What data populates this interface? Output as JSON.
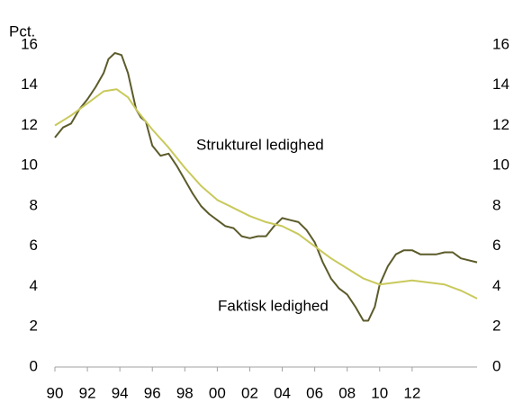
{
  "chart_data": {
    "type": "line",
    "y_label": "Pct.",
    "annotations": [
      "Strukturel ledighed",
      "Faktisk ledighed"
    ],
    "xlim": [
      1990,
      2016
    ],
    "xticks": [
      {
        "value": 1990,
        "label": "90"
      },
      {
        "value": 1992,
        "label": "92"
      },
      {
        "value": 1994,
        "label": "94"
      },
      {
        "value": 1996,
        "label": "96"
      },
      {
        "value": 1998,
        "label": "98"
      },
      {
        "value": 2000,
        "label": "00"
      },
      {
        "value": 2002,
        "label": "02"
      },
      {
        "value": 2004,
        "label": "04"
      },
      {
        "value": 2006,
        "label": "06"
      },
      {
        "value": 2008,
        "label": "08"
      },
      {
        "value": 2010,
        "label": "10"
      },
      {
        "value": 2012,
        "label": "12"
      }
    ],
    "ylim": [
      0,
      16
    ],
    "yticks": [
      0,
      2,
      4,
      6,
      8,
      10,
      12,
      14,
      16
    ],
    "y2lim": [
      0,
      16
    ],
    "y2ticks": [
      0,
      2,
      4,
      6,
      8,
      10,
      12,
      14,
      16
    ],
    "grid": false,
    "series": [
      {
        "name": "Faktisk ledighed",
        "color": "#5c5b2b",
        "x": [
          1990,
          1990.5,
          1991,
          1991.5,
          1992,
          1992.5,
          1993,
          1993.3,
          1993.7,
          1994.1,
          1994.5,
          1995,
          1995.3,
          1995.6,
          1996,
          1996.5,
          1997,
          1997.5,
          1998,
          1998.5,
          1999,
          1999.5,
          2000,
          2000.5,
          2001,
          2001.5,
          2002,
          2002.5,
          2003,
          2003.5,
          2004,
          2004.5,
          2005,
          2005.5,
          2006,
          2006.5,
          2007,
          2007.5,
          2008,
          2008.5,
          2009,
          2009.3,
          2009.7,
          2010,
          2010.5,
          2011,
          2011.5,
          2012,
          2012.5,
          2013,
          2013.5,
          2014,
          2014.5,
          2015,
          2016
        ],
        "values": [
          11.4,
          11.9,
          12.1,
          12.8,
          13.3,
          13.9,
          14.6,
          15.3,
          15.6,
          15.5,
          14.6,
          12.8,
          12.4,
          12.2,
          11.0,
          10.5,
          10.6,
          10.0,
          9.3,
          8.6,
          8.0,
          7.6,
          7.3,
          7.0,
          6.9,
          6.5,
          6.4,
          6.5,
          6.5,
          7.0,
          7.4,
          7.3,
          7.2,
          6.8,
          6.2,
          5.2,
          4.4,
          3.9,
          3.6,
          3.0,
          2.3,
          2.3,
          3.0,
          4.1,
          5.0,
          5.6,
          5.8,
          5.8,
          5.6,
          5.6,
          5.6,
          5.7,
          5.7,
          5.4,
          5.2
        ]
      },
      {
        "name": "Strukturel ledighed",
        "color": "#c9c95c",
        "x": [
          1990,
          1991,
          1992,
          1993,
          1993.8,
          1994.5,
          1995,
          1996,
          1997,
          1998,
          1999,
          2000,
          2001,
          2002,
          2003,
          2004,
          2005,
          2006,
          2007,
          2008,
          2009,
          2010,
          2011,
          2012,
          2013,
          2014,
          2015,
          2016
        ],
        "values": [
          12.0,
          12.5,
          13.1,
          13.7,
          13.8,
          13.4,
          12.8,
          11.8,
          10.9,
          9.9,
          9.0,
          8.3,
          7.9,
          7.5,
          7.2,
          7.0,
          6.6,
          6.0,
          5.4,
          4.9,
          4.4,
          4.1,
          4.2,
          4.3,
          4.2,
          4.1,
          3.8,
          3.4
        ]
      }
    ]
  }
}
